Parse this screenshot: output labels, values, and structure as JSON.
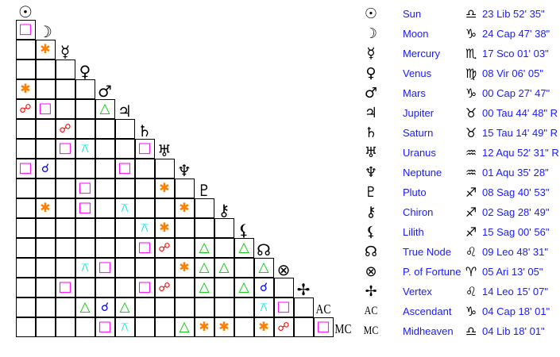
{
  "bodies": [
    {
      "glyph": "☉",
      "name": "Sun",
      "sign_glyph": "♎",
      "position": "23 Lib 52' 35\""
    },
    {
      "glyph": "☽",
      "name": "Moon",
      "sign_glyph": "♑",
      "position": "24 Cap 47' 38\""
    },
    {
      "glyph": "☿",
      "name": "Mercury",
      "sign_glyph": "♏",
      "position": "17 Sco 01' 03\""
    },
    {
      "glyph": "♀",
      "name": "Venus",
      "sign_glyph": "♍",
      "position": "08 Vir 06' 05\""
    },
    {
      "glyph": "♂",
      "name": "Mars",
      "sign_glyph": "♑",
      "position": "00 Cap 27' 47\""
    },
    {
      "glyph": "♃",
      "name": "Jupiter",
      "sign_glyph": "♉",
      "position": "00 Tau 44' 48\" R"
    },
    {
      "glyph": "♄",
      "name": "Saturn",
      "sign_glyph": "♉",
      "position": "15 Tau 14' 49\" R"
    },
    {
      "glyph": "♅",
      "name": "Uranus",
      "sign_glyph": "♒",
      "position": "12 Aqu 52' 31\" R"
    },
    {
      "glyph": "♆",
      "name": "Neptune",
      "sign_glyph": "♒",
      "position": "01 Aqu 35' 28\""
    },
    {
      "glyph": "♇",
      "name": "Pluto",
      "sign_glyph": "♐",
      "position": "08 Sag 40' 53\""
    },
    {
      "glyph": "⚷",
      "name": "Chiron",
      "sign_glyph": "♐",
      "position": "02 Sag 28' 49\""
    },
    {
      "glyph": "⚸",
      "name": "Lilith",
      "sign_glyph": "♐",
      "position": "15 Sag 00' 56\""
    },
    {
      "glyph": "☊",
      "name": "True Node",
      "sign_glyph": "♌",
      "position": "09 Leo 48' 31\""
    },
    {
      "glyph": "⊗",
      "name": "P. of Fortune",
      "sign_glyph": "♈",
      "position": "05 Ari 13' 05\""
    },
    {
      "glyph": "✢",
      "name": "Vertex",
      "sign_glyph": "♌",
      "position": "14 Leo 15' 07\""
    },
    {
      "glyph": "AC",
      "name": "Ascendant",
      "sign_glyph": "♑",
      "position": "04 Cap 18' 01\""
    },
    {
      "glyph": "MC",
      "name": "Midheaven",
      "sign_glyph": "♎",
      "position": "04 Lib 18' 01\""
    }
  ],
  "aspect_types": {
    "conjunction": {
      "glyph": "☌",
      "color": "#0000ff"
    },
    "opposition": {
      "glyph": "☍",
      "color": "#ff0000"
    },
    "trine": {
      "glyph": "△",
      "color": "#00c800"
    },
    "square": {
      "glyph": "□",
      "color": "#ff00ff"
    },
    "sextile": {
      "glyph": "✱",
      "color": "#ff8000"
    },
    "quincunx": {
      "glyph": "⚻",
      "color": "#00e5e5"
    }
  },
  "aspects": [
    {
      "row": "Moon",
      "col": "Sun",
      "type": "square"
    },
    {
      "row": "Mercury",
      "col": "Moon",
      "type": "sextile"
    },
    {
      "row": "Mars",
      "col": "Sun",
      "type": "sextile"
    },
    {
      "row": "Jupiter",
      "col": "Sun",
      "type": "opposition"
    },
    {
      "row": "Jupiter",
      "col": "Moon",
      "type": "square"
    },
    {
      "row": "Jupiter",
      "col": "Mars",
      "type": "trine"
    },
    {
      "row": "Saturn",
      "col": "Mercury",
      "type": "opposition"
    },
    {
      "row": "Uranus",
      "col": "Mercury",
      "type": "square"
    },
    {
      "row": "Uranus",
      "col": "Venus",
      "type": "quincunx"
    },
    {
      "row": "Uranus",
      "col": "Saturn",
      "type": "square"
    },
    {
      "row": "Neptune",
      "col": "Sun",
      "type": "square"
    },
    {
      "row": "Neptune",
      "col": "Moon",
      "type": "conjunction"
    },
    {
      "row": "Neptune",
      "col": "Jupiter",
      "type": "square"
    },
    {
      "row": "Pluto",
      "col": "Venus",
      "type": "square"
    },
    {
      "row": "Pluto",
      "col": "Uranus",
      "type": "sextile"
    },
    {
      "row": "Chiron",
      "col": "Moon",
      "type": "sextile"
    },
    {
      "row": "Chiron",
      "col": "Venus",
      "type": "square"
    },
    {
      "row": "Chiron",
      "col": "Jupiter",
      "type": "quincunx"
    },
    {
      "row": "Chiron",
      "col": "Neptune",
      "type": "sextile"
    },
    {
      "row": "Lilith",
      "col": "Saturn",
      "type": "quincunx"
    },
    {
      "row": "Lilith",
      "col": "Uranus",
      "type": "sextile"
    },
    {
      "row": "True Node",
      "col": "Saturn",
      "type": "square"
    },
    {
      "row": "True Node",
      "col": "Uranus",
      "type": "opposition"
    },
    {
      "row": "True Node",
      "col": "Pluto",
      "type": "trine"
    },
    {
      "row": "True Node",
      "col": "Lilith",
      "type": "trine"
    },
    {
      "row": "P. of Fortune",
      "col": "Venus",
      "type": "quincunx"
    },
    {
      "row": "P. of Fortune",
      "col": "Mars",
      "type": "square"
    },
    {
      "row": "P. of Fortune",
      "col": "Neptune",
      "type": "sextile"
    },
    {
      "row": "P. of Fortune",
      "col": "Pluto",
      "type": "trine"
    },
    {
      "row": "P. of Fortune",
      "col": "Chiron",
      "type": "trine"
    },
    {
      "row": "P. of Fortune",
      "col": "True Node",
      "type": "trine"
    },
    {
      "row": "Vertex",
      "col": "Mercury",
      "type": "square"
    },
    {
      "row": "Vertex",
      "col": "Saturn",
      "type": "square"
    },
    {
      "row": "Vertex",
      "col": "Uranus",
      "type": "opposition"
    },
    {
      "row": "Vertex",
      "col": "Pluto",
      "type": "trine"
    },
    {
      "row": "Vertex",
      "col": "Lilith",
      "type": "trine"
    },
    {
      "row": "Vertex",
      "col": "True Node",
      "type": "conjunction"
    },
    {
      "row": "Ascendant",
      "col": "Venus",
      "type": "trine"
    },
    {
      "row": "Ascendant",
      "col": "Mars",
      "type": "conjunction"
    },
    {
      "row": "Ascendant",
      "col": "Jupiter",
      "type": "trine"
    },
    {
      "row": "Ascendant",
      "col": "True Node",
      "type": "quincunx"
    },
    {
      "row": "Ascendant",
      "col": "P. of Fortune",
      "type": "square"
    },
    {
      "row": "Midheaven",
      "col": "Mars",
      "type": "square"
    },
    {
      "row": "Midheaven",
      "col": "Jupiter",
      "type": "quincunx"
    },
    {
      "row": "Midheaven",
      "col": "Neptune",
      "type": "trine"
    },
    {
      "row": "Midheaven",
      "col": "Pluto",
      "type": "sextile"
    },
    {
      "row": "Midheaven",
      "col": "Chiron",
      "type": "sextile"
    },
    {
      "row": "Midheaven",
      "col": "True Node",
      "type": "sextile"
    },
    {
      "row": "Midheaven",
      "col": "P. of Fortune",
      "type": "opposition"
    },
    {
      "row": "Midheaven",
      "col": "Ascendant",
      "type": "square"
    }
  ]
}
